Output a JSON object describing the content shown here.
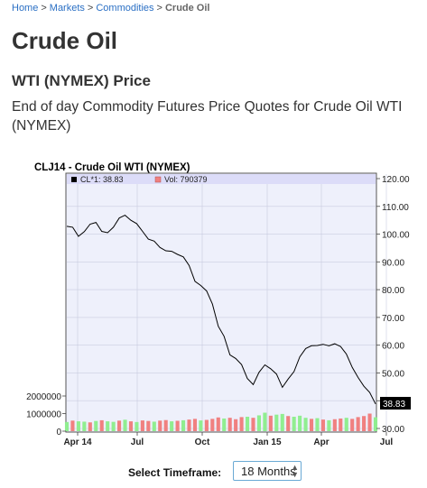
{
  "breadcrumb": {
    "home": "Home",
    "markets": "Markets",
    "commodities": "Commodities",
    "current": "Crude Oil",
    "separator": ">"
  },
  "page": {
    "title": "Crude Oil",
    "subtitle": "WTI (NYMEX) Price",
    "description": "End of day Commodity Futures Price Quotes for Crude Oil WTI (NYMEX)"
  },
  "chart_data": {
    "type": "line",
    "title": "CLJ14 - Crude Oil WTI (NYMEX)",
    "legend": {
      "price_label": "CL*1: 38.83",
      "volume_label": "Vol: 790379",
      "placement": "top-left"
    },
    "x_tick_labels": [
      "Apr 14",
      "Jul",
      "Oct",
      "Jan 15",
      "Apr",
      "Jul"
    ],
    "price_axis": {
      "side": "right",
      "ylim": [
        30,
        120
      ],
      "ticks": [
        "120.00",
        "110.00",
        "100.00",
        "90.00",
        "80.00",
        "70.00",
        "60.00",
        "50.00",
        "40.00",
        "30.00"
      ]
    },
    "volume_axis": {
      "side": "left",
      "ticks": [
        "2000000",
        "1000000",
        "0"
      ]
    },
    "last_price": "38.83",
    "grid": true,
    "series": [
      {
        "name": "CL*1",
        "x": [
          "2014-03",
          "2014-03",
          "2014-03",
          "2014-04",
          "2014-04",
          "2014-04",
          "2014-05",
          "2014-05",
          "2014-05",
          "2014-06",
          "2014-06",
          "2014-06",
          "2014-07",
          "2014-07",
          "2014-07",
          "2014-08",
          "2014-08",
          "2014-08",
          "2014-09",
          "2014-09",
          "2014-09",
          "2014-10",
          "2014-10",
          "2014-10",
          "2014-11",
          "2014-11",
          "2014-11",
          "2014-12",
          "2014-12",
          "2014-12",
          "2015-01",
          "2015-01",
          "2015-01",
          "2015-02",
          "2015-02",
          "2015-02",
          "2015-03",
          "2015-03",
          "2015-03",
          "2015-04",
          "2015-04",
          "2015-04",
          "2015-05",
          "2015-05",
          "2015-05",
          "2015-06",
          "2015-06",
          "2015-06",
          "2015-07",
          "2015-07",
          "2015-07",
          "2015-08",
          "2015-08",
          "2015-08"
        ],
        "values": [
          102.8,
          102.5,
          99.2,
          100.9,
          103.6,
          104.2,
          101.0,
          100.5,
          102.5,
          105.8,
          106.8,
          105.0,
          103.8,
          101.0,
          98.2,
          97.5,
          95.2,
          94.0,
          93.8,
          92.7,
          91.8,
          88.7,
          83.0,
          81.5,
          79.5,
          74.8,
          66.8,
          63.2,
          56.5,
          55.2,
          53.0,
          48.0,
          45.8,
          50.2,
          52.9,
          51.5,
          49.6,
          44.8,
          47.8,
          50.5,
          55.8,
          58.8,
          59.8,
          59.9,
          60.3,
          59.8,
          60.5,
          59.5,
          56.8,
          52.0,
          48.4,
          45.2,
          43.0,
          38.83
        ]
      },
      {
        "name": "Vol",
        "volume_up": [
          1,
          0,
          1,
          1,
          0,
          1,
          0,
          1,
          1,
          0,
          1,
          0,
          1,
          0,
          0,
          1,
          0,
          0,
          1,
          0,
          1,
          0,
          0,
          1,
          0,
          0,
          0,
          1,
          0,
          0,
          0,
          1,
          0,
          1,
          1,
          0,
          1,
          1,
          0,
          1,
          1,
          1,
          0,
          1,
          0,
          1,
          0,
          0,
          1,
          0,
          0,
          0,
          0,
          1
        ],
        "values": [
          520000,
          600000,
          560000,
          540000,
          500000,
          580000,
          620000,
          560000,
          530000,
          600000,
          650000,
          560000,
          520000,
          610000,
          580000,
          540000,
          600000,
          630000,
          560000,
          590000,
          620000,
          660000,
          700000,
          610000,
          640000,
          700000,
          780000,
          720000,
          760000,
          680000,
          800000,
          820000,
          760000,
          900000,
          1050000,
          880000,
          940000,
          980000,
          860000,
          820000,
          880000,
          760000,
          700000,
          740000,
          660000,
          620000,
          680000,
          720000,
          760000,
          700000,
          800000,
          860000,
          1000000,
          790379
        ]
      }
    ]
  },
  "timeframe": {
    "label": "Select Timeframe:",
    "selected": "18 Months"
  },
  "colors": {
    "link": "#2a6fc4",
    "price_line": "#000000",
    "volume_up": "#90ee90",
    "volume_down": "#f08080",
    "panel_bg": "#eef0fb",
    "legend_bg": "#dcdcf8"
  }
}
